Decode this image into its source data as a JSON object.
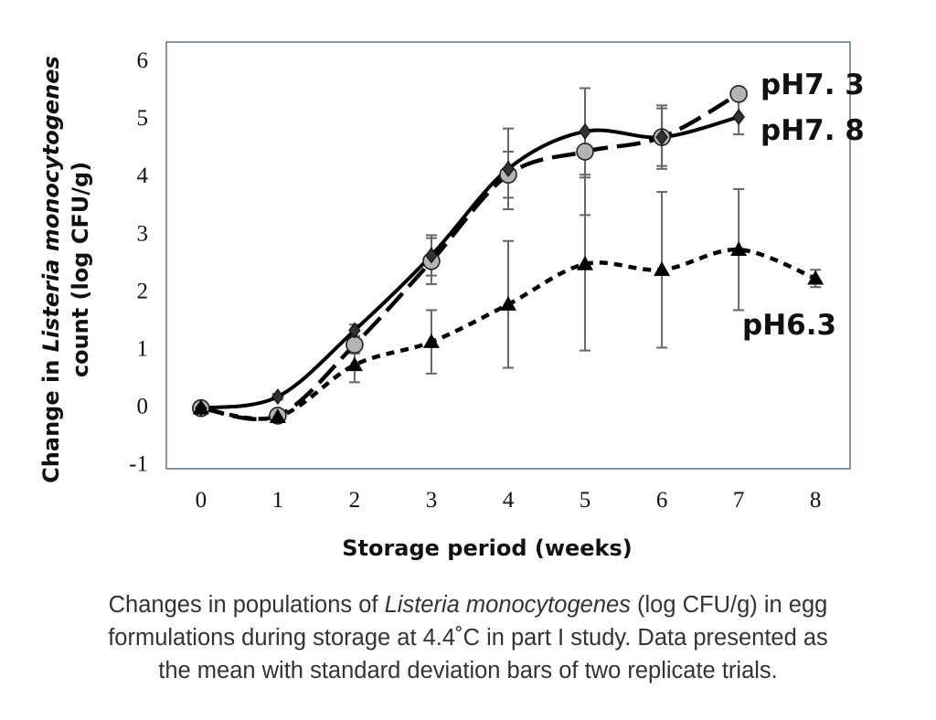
{
  "chart_data": {
    "type": "line",
    "xlabel": "Storage period (weeks)",
    "ylabel_prefix": "Change in ",
    "ylabel_italic": "Listeria monocytogenes",
    "ylabel_line2": "count (log CFU/g)",
    "x_ticks": [
      "0",
      "1",
      "2",
      "3",
      "4",
      "5",
      "6",
      "7",
      "8"
    ],
    "y_ticks": [
      "-1",
      "0",
      "1",
      "2",
      "3",
      "4",
      "5",
      "6"
    ],
    "xlim": [
      -0.45,
      8.45
    ],
    "ylim": [
      -1.1,
      6.3
    ],
    "grid": false,
    "legend": "inline labels at line ends",
    "series": [
      {
        "name": "pH7. 3",
        "marker": "circle",
        "style": "long-dash",
        "x": [
          0,
          1,
          2,
          3,
          4,
          5,
          6,
          7
        ],
        "y": [
          -0.05,
          -0.18,
          1.05,
          2.5,
          4.0,
          4.4,
          4.65,
          5.4
        ],
        "err": [
          0.05,
          0.08,
          0.15,
          0.4,
          0.4,
          1.1,
          0.55,
          0.1
        ]
      },
      {
        "name": "pH7. 8",
        "marker": "diamond",
        "style": "solid",
        "x": [
          0,
          1,
          2,
          3,
          4,
          5,
          6,
          7
        ],
        "y": [
          -0.05,
          0.15,
          1.3,
          2.6,
          4.1,
          4.75,
          4.65,
          5.0
        ],
        "err": [
          0.05,
          0.05,
          0.1,
          0.35,
          0.7,
          0.75,
          0.5,
          0.3
        ]
      },
      {
        "name": "pH6.3",
        "marker": "triangle",
        "style": "short-dash",
        "x": [
          0,
          1,
          2,
          3,
          4,
          5,
          6,
          7,
          8
        ],
        "y": [
          -0.05,
          -0.2,
          0.7,
          1.1,
          1.75,
          2.45,
          2.35,
          2.7,
          2.2
        ],
        "err": [
          0.05,
          0.05,
          0.3,
          0.55,
          1.1,
          1.5,
          1.35,
          1.05,
          0.15
        ]
      }
    ]
  },
  "caption": {
    "part1": "Changes in populations of ",
    "italic": "Listeria monocytogenes",
    "part2": " (log CFU/g) in egg",
    "line2": "formulations during storage at 4.4˚C in part I study. Data presented as",
    "line3": "the mean with standard deviation bars of two replicate trials."
  }
}
